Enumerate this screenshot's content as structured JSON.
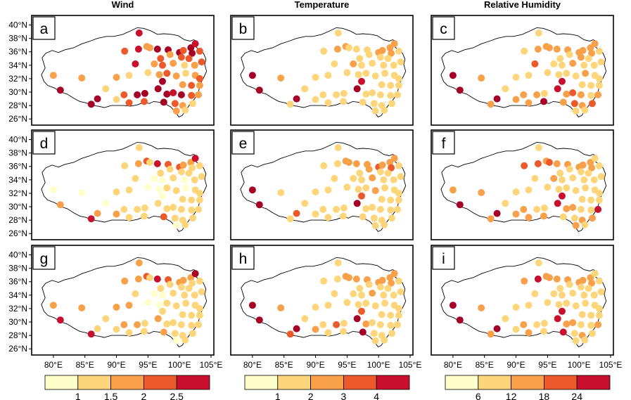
{
  "figure": {
    "column_titles": [
      "Wind",
      "Temperature",
      "Relative Humidity"
    ],
    "panel_labels": [
      "a",
      "b",
      "c",
      "d",
      "e",
      "f",
      "g",
      "h",
      "i"
    ],
    "lat_ticks": [
      "26°N",
      "28°N",
      "30°N",
      "32°N",
      "34°N",
      "36°N",
      "38°N",
      "40°N"
    ],
    "lon_ticks": [
      "80°E",
      "85°E",
      "90°E",
      "95°E",
      "100°E",
      "105°E"
    ]
  },
  "chart_data": {
    "type": "scatter",
    "title": "",
    "xlabel": "",
    "ylabel": "",
    "xlim": [
      77,
      105
    ],
    "ylim": [
      25.5,
      41
    ],
    "x_ticks": [
      80,
      85,
      90,
      95,
      100,
      105
    ],
    "y_ticks": [
      26,
      28,
      30,
      32,
      34,
      36,
      38,
      40
    ],
    "grid": false,
    "layout": "3x3 map panels; columns = Wind, Temperature, Relative Humidity",
    "palette": [
      "#ffffcc",
      "#fdd67c",
      "#f9a04b",
      "#ec5a2c",
      "#c8102e",
      "#a50026"
    ],
    "stations": [
      [
        88.3,
        30.5
      ],
      [
        93.6,
        38.8
      ],
      [
        91.3,
        36.1
      ],
      [
        93.5,
        36.4
      ],
      [
        94.8,
        36.8
      ],
      [
        96.5,
        36.4
      ],
      [
        98.2,
        36.3
      ],
      [
        100.0,
        35.9
      ],
      [
        101.8,
        36.6
      ],
      [
        102.5,
        37.2
      ],
      [
        103.2,
        36.1
      ],
      [
        100.6,
        36.2
      ],
      [
        102.0,
        35.8
      ],
      [
        101.5,
        35.0
      ],
      [
        103.5,
        34.5
      ],
      [
        102.4,
        34.0
      ],
      [
        100.8,
        34.0
      ],
      [
        99.0,
        34.3
      ],
      [
        97.3,
        34.0
      ],
      [
        96.0,
        34.2
      ],
      [
        93.0,
        34.2
      ],
      [
        92.0,
        32.5
      ],
      [
        90.0,
        32.2
      ],
      [
        95.0,
        32.9
      ],
      [
        96.8,
        32.6
      ],
      [
        98.0,
        32.8
      ],
      [
        99.5,
        32.4
      ],
      [
        101.0,
        32.8
      ],
      [
        102.5,
        32.5
      ],
      [
        103.2,
        32.0
      ],
      [
        97.3,
        31.6
      ],
      [
        100.5,
        31.1
      ],
      [
        101.9,
        31.0
      ],
      [
        103.2,
        31.0
      ],
      [
        80.0,
        32.5
      ],
      [
        84.5,
        32.1
      ],
      [
        81.1,
        30.3
      ],
      [
        91.2,
        29.6
      ],
      [
        93.3,
        29.6
      ],
      [
        94.5,
        29.8
      ],
      [
        96.6,
        30.5
      ],
      [
        98.0,
        29.7
      ],
      [
        99.0,
        29.9
      ],
      [
        100.3,
        29.6
      ],
      [
        101.9,
        29.5
      ],
      [
        103.0,
        29.6
      ],
      [
        86.0,
        28.2
      ],
      [
        87.0,
        29.0
      ],
      [
        90.0,
        28.9
      ],
      [
        92.0,
        28.4
      ],
      [
        94.4,
        28.6
      ],
      [
        97.5,
        28.5
      ],
      [
        99.3,
        28.3
      ],
      [
        100.5,
        28.0
      ],
      [
        102.1,
        28.3
      ],
      [
        99.5,
        27.2
      ],
      [
        100.9,
        27.3
      ],
      [
        95.3,
        36.6
      ],
      [
        97.0,
        35.0
      ],
      [
        98.5,
        35.6
      ],
      [
        100.3,
        35.2
      ]
    ],
    "series": [
      {
        "name": "Wind",
        "panel": "a",
        "color_scale": [
          1,
          1.5,
          2,
          2.5
        ],
        "classes": [
          1,
          4,
          3,
          4,
          2,
          5,
          5,
          5,
          5,
          4,
          3,
          3,
          5,
          3,
          3,
          2,
          1,
          2,
          3,
          2,
          4,
          1,
          2,
          1,
          2,
          3,
          2,
          1,
          2,
          3,
          5,
          2,
          3,
          2,
          2,
          2,
          5,
          3,
          5,
          5,
          5,
          5,
          4,
          5,
          3,
          2,
          5,
          5,
          1,
          3,
          3,
          5,
          3,
          2,
          1,
          2,
          1,
          2,
          3,
          2,
          3
        ]
      },
      {
        "name": "Wind",
        "panel": "d",
        "color_scale": [
          1,
          1.5,
          2,
          2.5
        ],
        "classes": [
          0,
          1,
          1,
          2,
          3,
          4,
          3,
          3,
          2,
          4,
          1,
          2,
          1,
          1,
          1,
          1,
          0,
          1,
          0,
          0,
          1,
          1,
          1,
          0,
          0,
          1,
          1,
          0,
          1,
          1,
          0,
          1,
          1,
          1,
          0,
          0,
          2,
          1,
          1,
          1,
          1,
          1,
          1,
          1,
          1,
          1,
          4,
          2,
          2,
          1,
          1,
          3,
          1,
          1,
          1,
          0,
          1,
          1,
          1,
          1,
          1
        ]
      },
      {
        "name": "Wind",
        "panel": "g",
        "color_scale": [
          1,
          1.5,
          2,
          2.5
        ],
        "classes": [
          1,
          2,
          2,
          2,
          3,
          4,
          3,
          2,
          2,
          5,
          1,
          2,
          1,
          1,
          1,
          1,
          1,
          1,
          0,
          0,
          1,
          2,
          2,
          0,
          0,
          1,
          1,
          1,
          1,
          1,
          1,
          1,
          1,
          1,
          2,
          2,
          4,
          2,
          2,
          1,
          2,
          1,
          1,
          1,
          1,
          1,
          4,
          1,
          1,
          1,
          1,
          2,
          1,
          1,
          1,
          0,
          1,
          1,
          1,
          1,
          1
        ]
      },
      {
        "name": "Temperature",
        "panel": "b",
        "color_scale": [
          1,
          2,
          3,
          4
        ],
        "classes": [
          1,
          1,
          1,
          2,
          2,
          1,
          1,
          2,
          2,
          2,
          1,
          2,
          2,
          1,
          1,
          1,
          1,
          1,
          1,
          2,
          1,
          1,
          1,
          1,
          1,
          1,
          1,
          1,
          1,
          1,
          4,
          1,
          1,
          1,
          5,
          2,
          5,
          1,
          1,
          1,
          5,
          1,
          1,
          1,
          1,
          1,
          1,
          5,
          1,
          1,
          1,
          1,
          1,
          1,
          1,
          1,
          1,
          1,
          1,
          1,
          1
        ]
      },
      {
        "name": "Temperature",
        "panel": "e",
        "color_scale": [
          1,
          2,
          3,
          4
        ],
        "classes": [
          1,
          1,
          1,
          1,
          2,
          2,
          2,
          3,
          2,
          2,
          1,
          2,
          3,
          1,
          1,
          1,
          1,
          2,
          1,
          1,
          1,
          1,
          1,
          1,
          1,
          1,
          2,
          1,
          1,
          1,
          3,
          1,
          1,
          1,
          5,
          1,
          5,
          1,
          1,
          1,
          5,
          1,
          1,
          1,
          1,
          1,
          1,
          3,
          1,
          1,
          1,
          1,
          1,
          1,
          1,
          1,
          1,
          2,
          1,
          2,
          1
        ]
      },
      {
        "name": "Temperature",
        "panel": "h",
        "color_scale": [
          1,
          2,
          3,
          4
        ],
        "classes": [
          1,
          1,
          1,
          1,
          2,
          2,
          2,
          2,
          2,
          2,
          1,
          2,
          2,
          1,
          1,
          1,
          1,
          2,
          1,
          1,
          1,
          1,
          1,
          1,
          1,
          1,
          1,
          1,
          1,
          1,
          3,
          1,
          1,
          1,
          5,
          2,
          5,
          1,
          3,
          1,
          5,
          2,
          1,
          1,
          1,
          1,
          3,
          5,
          2,
          1,
          1,
          5,
          1,
          1,
          1,
          1,
          1,
          2,
          1,
          1,
          1
        ]
      },
      {
        "name": "Relative Humidity",
        "panel": "c",
        "color_scale": [
          6,
          12,
          18,
          24
        ],
        "classes": [
          1,
          1,
          1,
          2,
          2,
          2,
          2,
          2,
          2,
          2,
          1,
          2,
          2,
          1,
          1,
          1,
          1,
          2,
          1,
          1,
          3,
          1,
          1,
          1,
          1,
          1,
          1,
          2,
          1,
          1,
          4,
          1,
          1,
          1,
          5,
          2,
          5,
          2,
          2,
          1,
          4,
          2,
          3,
          2,
          1,
          2,
          2,
          5,
          2,
          2,
          5,
          2,
          3,
          2,
          3,
          1,
          1,
          2,
          1,
          1,
          2
        ]
      },
      {
        "name": "Relative Humidity",
        "panel": "f",
        "color_scale": [
          6,
          12,
          18,
          24
        ],
        "classes": [
          1,
          1,
          3,
          3,
          2,
          2,
          2,
          2,
          2,
          1,
          1,
          2,
          2,
          1,
          1,
          1,
          1,
          1,
          1,
          2,
          1,
          1,
          1,
          1,
          1,
          1,
          1,
          1,
          1,
          1,
          4,
          1,
          1,
          1,
          2,
          2,
          5,
          2,
          1,
          1,
          4,
          2,
          2,
          1,
          1,
          4,
          2,
          5,
          2,
          2,
          2,
          1,
          1,
          2,
          2,
          2,
          1,
          3,
          1,
          1,
          1
        ]
      },
      {
        "name": "Relative Humidity",
        "panel": "i",
        "color_scale": [
          6,
          12,
          18,
          24
        ],
        "classes": [
          1,
          1,
          2,
          4,
          2,
          2,
          2,
          2,
          2,
          1,
          1,
          2,
          2,
          1,
          1,
          1,
          1,
          1,
          1,
          1,
          1,
          1,
          1,
          1,
          1,
          1,
          1,
          1,
          1,
          1,
          4,
          1,
          1,
          1,
          5,
          2,
          5,
          2,
          1,
          1,
          4,
          2,
          2,
          1,
          1,
          2,
          2,
          5,
          1,
          2,
          1,
          4,
          1,
          2,
          1,
          1,
          1,
          2,
          1,
          1,
          1
        ]
      }
    ],
    "colorbars": [
      {
        "ticks": [
          "1",
          "1.5",
          "2",
          "2.5"
        ]
      },
      {
        "ticks": [
          "1",
          "2",
          "3",
          "4"
        ]
      },
      {
        "ticks": [
          "6",
          "12",
          "18",
          "24"
        ]
      }
    ]
  }
}
